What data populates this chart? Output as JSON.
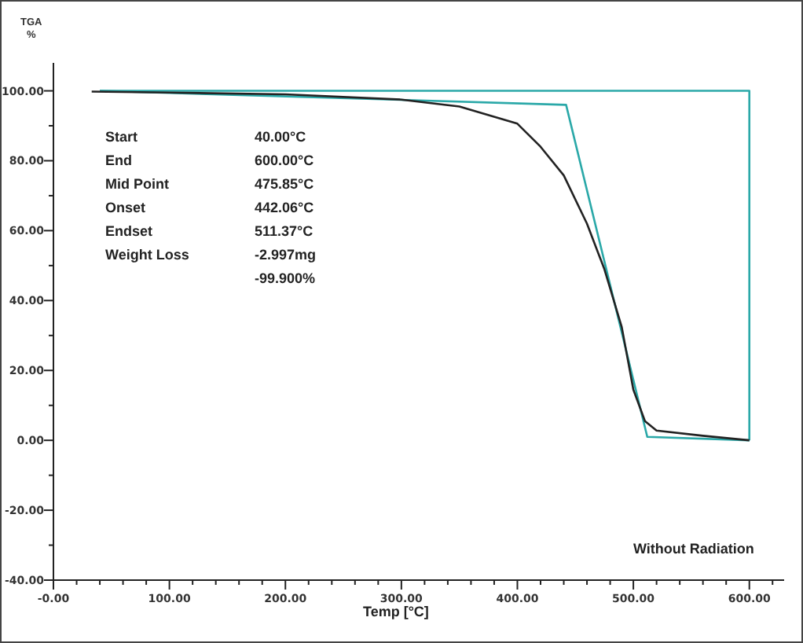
{
  "chart_data": {
    "type": "line",
    "xlabel": "Temp [°C]",
    "ylabel": "TGA %",
    "xlim": [
      0,
      630
    ],
    "ylim": [
      -40,
      108
    ],
    "xticks": [
      {
        "value": 0,
        "label": "-0.00"
      },
      {
        "value": 20,
        "label": null
      },
      {
        "value": 40,
        "label": null
      },
      {
        "value": 60,
        "label": null
      },
      {
        "value": 80,
        "label": null
      },
      {
        "value": 100,
        "label": "100.00"
      },
      {
        "value": 120,
        "label": null
      },
      {
        "value": 140,
        "label": null
      },
      {
        "value": 160,
        "label": null
      },
      {
        "value": 180,
        "label": null
      },
      {
        "value": 200,
        "label": "200.00"
      },
      {
        "value": 220,
        "label": null
      },
      {
        "value": 240,
        "label": null
      },
      {
        "value": 260,
        "label": null
      },
      {
        "value": 280,
        "label": null
      },
      {
        "value": 300,
        "label": "300.00"
      },
      {
        "value": 320,
        "label": null
      },
      {
        "value": 340,
        "label": null
      },
      {
        "value": 360,
        "label": null
      },
      {
        "value": 380,
        "label": null
      },
      {
        "value": 400,
        "label": "400.00"
      },
      {
        "value": 420,
        "label": null
      },
      {
        "value": 440,
        "label": null
      },
      {
        "value": 460,
        "label": null
      },
      {
        "value": 480,
        "label": null
      },
      {
        "value": 500,
        "label": "500.00"
      },
      {
        "value": 520,
        "label": null
      },
      {
        "value": 540,
        "label": null
      },
      {
        "value": 560,
        "label": null
      },
      {
        "value": 580,
        "label": null
      },
      {
        "value": 600,
        "label": "600.00"
      },
      {
        "value": 620,
        "label": null
      }
    ],
    "yticks": [
      {
        "value": -40,
        "label": "-40.00"
      },
      {
        "value": -30,
        "label": null
      },
      {
        "value": -20,
        "label": "-20.00"
      },
      {
        "value": -10,
        "label": null
      },
      {
        "value": 0,
        "label": "0.00"
      },
      {
        "value": 10,
        "label": null
      },
      {
        "value": 20,
        "label": "20.00"
      },
      {
        "value": 30,
        "label": null
      },
      {
        "value": 40,
        "label": "40.00"
      },
      {
        "value": 50,
        "label": null
      },
      {
        "value": 60,
        "label": "60.00"
      },
      {
        "value": 70,
        "label": null
      },
      {
        "value": 80,
        "label": "80.00"
      },
      {
        "value": 90,
        "label": null
      },
      {
        "value": 100,
        "label": "100.00"
      }
    ],
    "marker": "none",
    "line_style": "solid",
    "series": [
      {
        "color": "#2aa8a8",
        "x": [
          40,
          442,
          512,
          600
        ],
        "values": [
          100,
          96,
          1,
          0
        ]
      },
      {
        "color": "#2aa8a8",
        "x": [
          40,
          600,
          600
        ],
        "values": [
          100,
          100,
          0
        ]
      },
      {
        "color": "#222222",
        "x": [
          33,
          100,
          200,
          300,
          350,
          400,
          420,
          440,
          460,
          475,
          490,
          500,
          510,
          520,
          560,
          600
        ],
        "values": [
          99.8,
          99.5,
          99,
          97.5,
          95.5,
          90.6,
          84,
          75.8,
          62,
          49,
          32.4,
          14.5,
          5.5,
          2.8,
          1.3,
          0
        ]
      }
    ],
    "annotations": [
      "Start\t40.00°C",
      "End\t600.00°C",
      "Mid Point\t475.85°C",
      "Onset\t442.06°C",
      "Endset\t511.37°C",
      "Weight Loss\t-2.997mg",
      "\t-99.900%",
      "Without Radiation"
    ]
  }
}
